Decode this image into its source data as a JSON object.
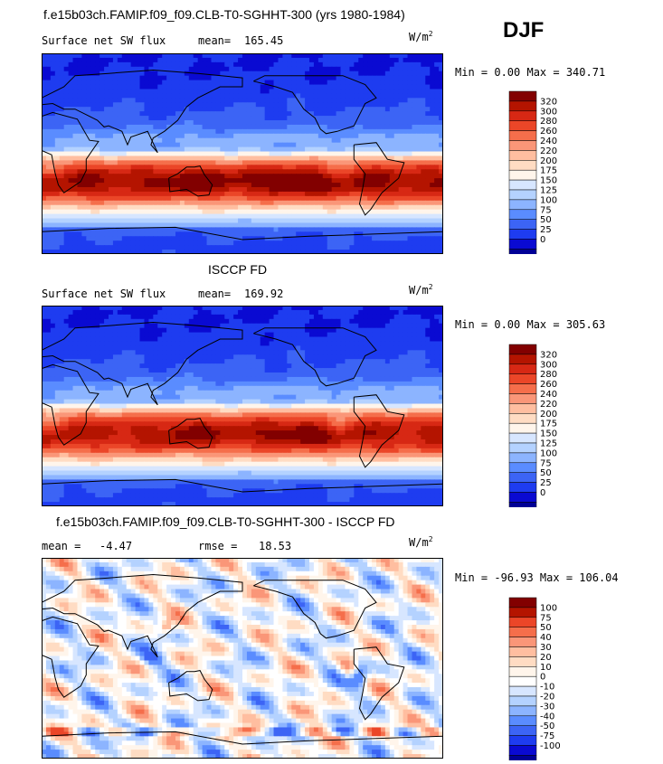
{
  "season": "DJF",
  "panels": [
    {
      "title": "f.e15b03ch.FAMIP.f09_f09.CLB-T0-SGHHT-300 (yrs 1980-1984)",
      "left_label": "Surface net SW flux",
      "stat_label": "mean=",
      "stat_value": "165.45",
      "stat2_label": "",
      "stat2_value": "",
      "unit_base": "W/m",
      "unit_exp": "2",
      "minmax": "Min =   0.00 Max = 340.71"
    },
    {
      "title": "ISCCP FD",
      "left_label": "Surface net SW flux",
      "stat_label": "mean=",
      "stat_value": "169.92",
      "stat2_label": "",
      "stat2_value": "",
      "unit_base": "W/m",
      "unit_exp": "2",
      "minmax": "Min =   0.00 Max = 305.63"
    },
    {
      "title": "f.e15b03ch.FAMIP.f09_f09.CLB-T0-SGHHT-300 - ISCCP FD",
      "left_label": "mean =",
      "stat_label": "",
      "stat_value": "-4.47",
      "stat2_label": "rmse =",
      "stat2_value": "18.53",
      "unit_base": "W/m",
      "unit_exp": "2",
      "minmax": "Min = -96.93 Max = 106.04"
    }
  ],
  "colors": {
    "abs_scale": [
      "#000096",
      "#0a0ad2",
      "#1e3cf0",
      "#3c64f5",
      "#5a8cff",
      "#8cb4ff",
      "#b4d2ff",
      "#d7e6ff",
      "#fff5eb",
      "#ffdcc3",
      "#ffbea0",
      "#fa9678",
      "#f56e4b",
      "#eb4628",
      "#d72814",
      "#b41400",
      "#820000"
    ],
    "diff_scale": [
      "#000096",
      "#0a0ad2",
      "#1e3cf0",
      "#3c64f5",
      "#5a8cff",
      "#8cb4ff",
      "#b4d2ff",
      "#d7e6ff",
      "#ffffff",
      "#fff5eb",
      "#ffdcc3",
      "#ffbea0",
      "#fa9678",
      "#f56e4b",
      "#eb4628",
      "#b41400",
      "#820000"
    ]
  },
  "chart_data": [
    {
      "type": "heatmap",
      "title": "f.e15b03ch.FAMIP.f09_f09.CLB-T0-SGHHT-300 (yrs 1980-1984)",
      "subtitle": "Surface net SW flux",
      "unit": "W/m2",
      "mean": 165.45,
      "min": 0.0,
      "max": 340.71,
      "colorbar_levels": [
        "320",
        "300",
        "280",
        "260",
        "240",
        "220",
        "200",
        "175",
        "150",
        "125",
        "100",
        "75",
        "50",
        "25",
        "0"
      ]
    },
    {
      "type": "heatmap",
      "title": "ISCCP FD",
      "subtitle": "Surface net SW flux",
      "unit": "W/m2",
      "mean": 169.92,
      "min": 0.0,
      "max": 305.63,
      "colorbar_levels": [
        "320",
        "300",
        "280",
        "260",
        "240",
        "220",
        "200",
        "175",
        "150",
        "125",
        "100",
        "75",
        "50",
        "25",
        "0"
      ]
    },
    {
      "type": "heatmap",
      "title": "f.e15b03ch.FAMIP.f09_f09.CLB-T0-SGHHT-300 - ISCCP FD",
      "unit": "W/m2",
      "mean": -4.47,
      "rmse": 18.53,
      "min": -96.93,
      "max": 106.04,
      "colorbar_levels": [
        "100",
        "75",
        "50",
        "40",
        "30",
        "20",
        "10",
        "0",
        "-10",
        "-20",
        "-30",
        "-40",
        "-50",
        "-75",
        "-100"
      ]
    }
  ]
}
